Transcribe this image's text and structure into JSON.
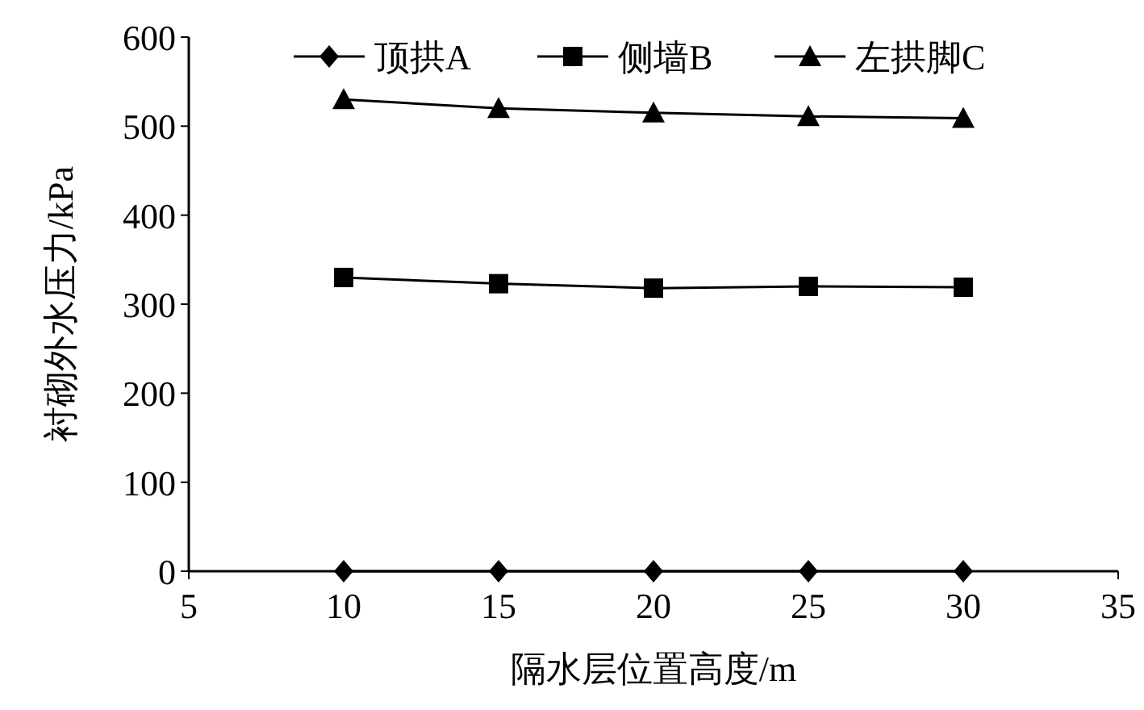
{
  "chart_data": {
    "type": "line",
    "xlabel": "隔水层位置高度/m",
    "ylabel": "衬砌外水压力/kPa",
    "x": [
      10,
      15,
      20,
      25,
      30
    ],
    "series": [
      {
        "name": "顶拱A",
        "color": "#000000",
        "marker": "diamond",
        "values": [
          0,
          0,
          0,
          0,
          0
        ]
      },
      {
        "name": "侧墙B",
        "color": "#000000",
        "marker": "square",
        "values": [
          330,
          323,
          318,
          320,
          319
        ]
      },
      {
        "name": "左拱脚C",
        "color": "#000000",
        "marker": "triangle",
        "values": [
          530,
          520,
          515,
          511,
          509
        ]
      }
    ],
    "xlim": [
      5,
      35
    ],
    "xticks": [
      5,
      10,
      15,
      20,
      25,
      30,
      35
    ],
    "ylim": [
      0,
      600
    ],
    "yticks": [
      0,
      100,
      200,
      300,
      400,
      500,
      600
    ],
    "grid": false,
    "legend": "top",
    "line_style": "solid"
  }
}
